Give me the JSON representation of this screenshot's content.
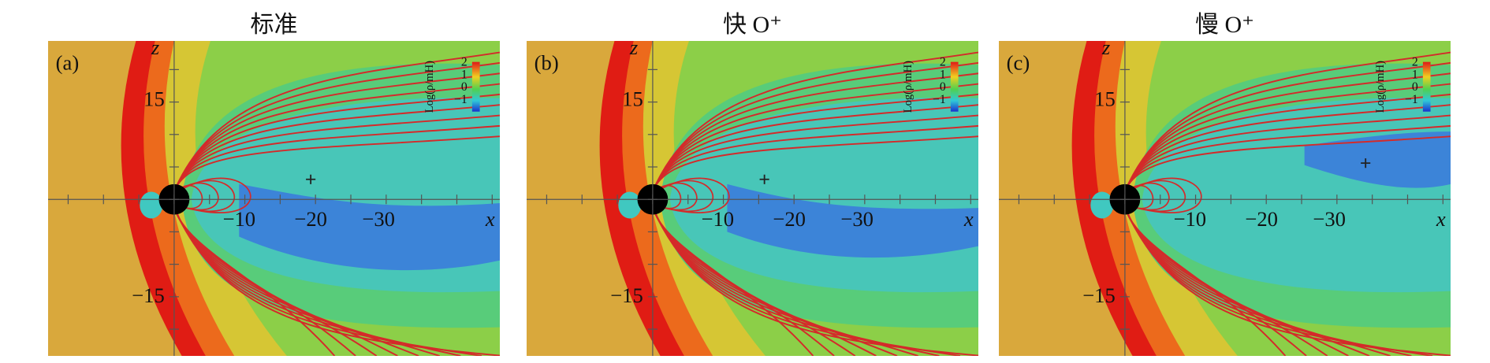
{
  "panels": [
    {
      "title": "标准",
      "label": "(a)",
      "x_label": "x",
      "z_label": "z",
      "x_ticks": [
        "−10",
        "−20",
        "−30"
      ],
      "z_ticks": [
        "15",
        "−15"
      ],
      "colorbar": {
        "label": "Log(ρ/mH)",
        "ticks": [
          "2",
          "1",
          "0",
          "−1"
        ]
      }
    },
    {
      "title": "快 O⁺",
      "label": "(b)",
      "x_label": "x",
      "z_label": "z",
      "x_ticks": [
        "−10",
        "−20",
        "−30"
      ],
      "z_ticks": [
        "15",
        "−15"
      ],
      "colorbar": {
        "label": "Log(ρ/mH)",
        "ticks": [
          "2",
          "1",
          "0",
          "−1"
        ]
      }
    },
    {
      "title": "慢 O⁺",
      "label": "(c)",
      "x_label": "x",
      "z_label": "z",
      "x_ticks": [
        "−10",
        "−20",
        "−30"
      ],
      "z_ticks": [
        "15",
        "−15"
      ],
      "colorbar": {
        "label": "Log(ρ/mH)",
        "ticks": [
          "2",
          "1",
          "0",
          "−1"
        ]
      }
    }
  ]
}
